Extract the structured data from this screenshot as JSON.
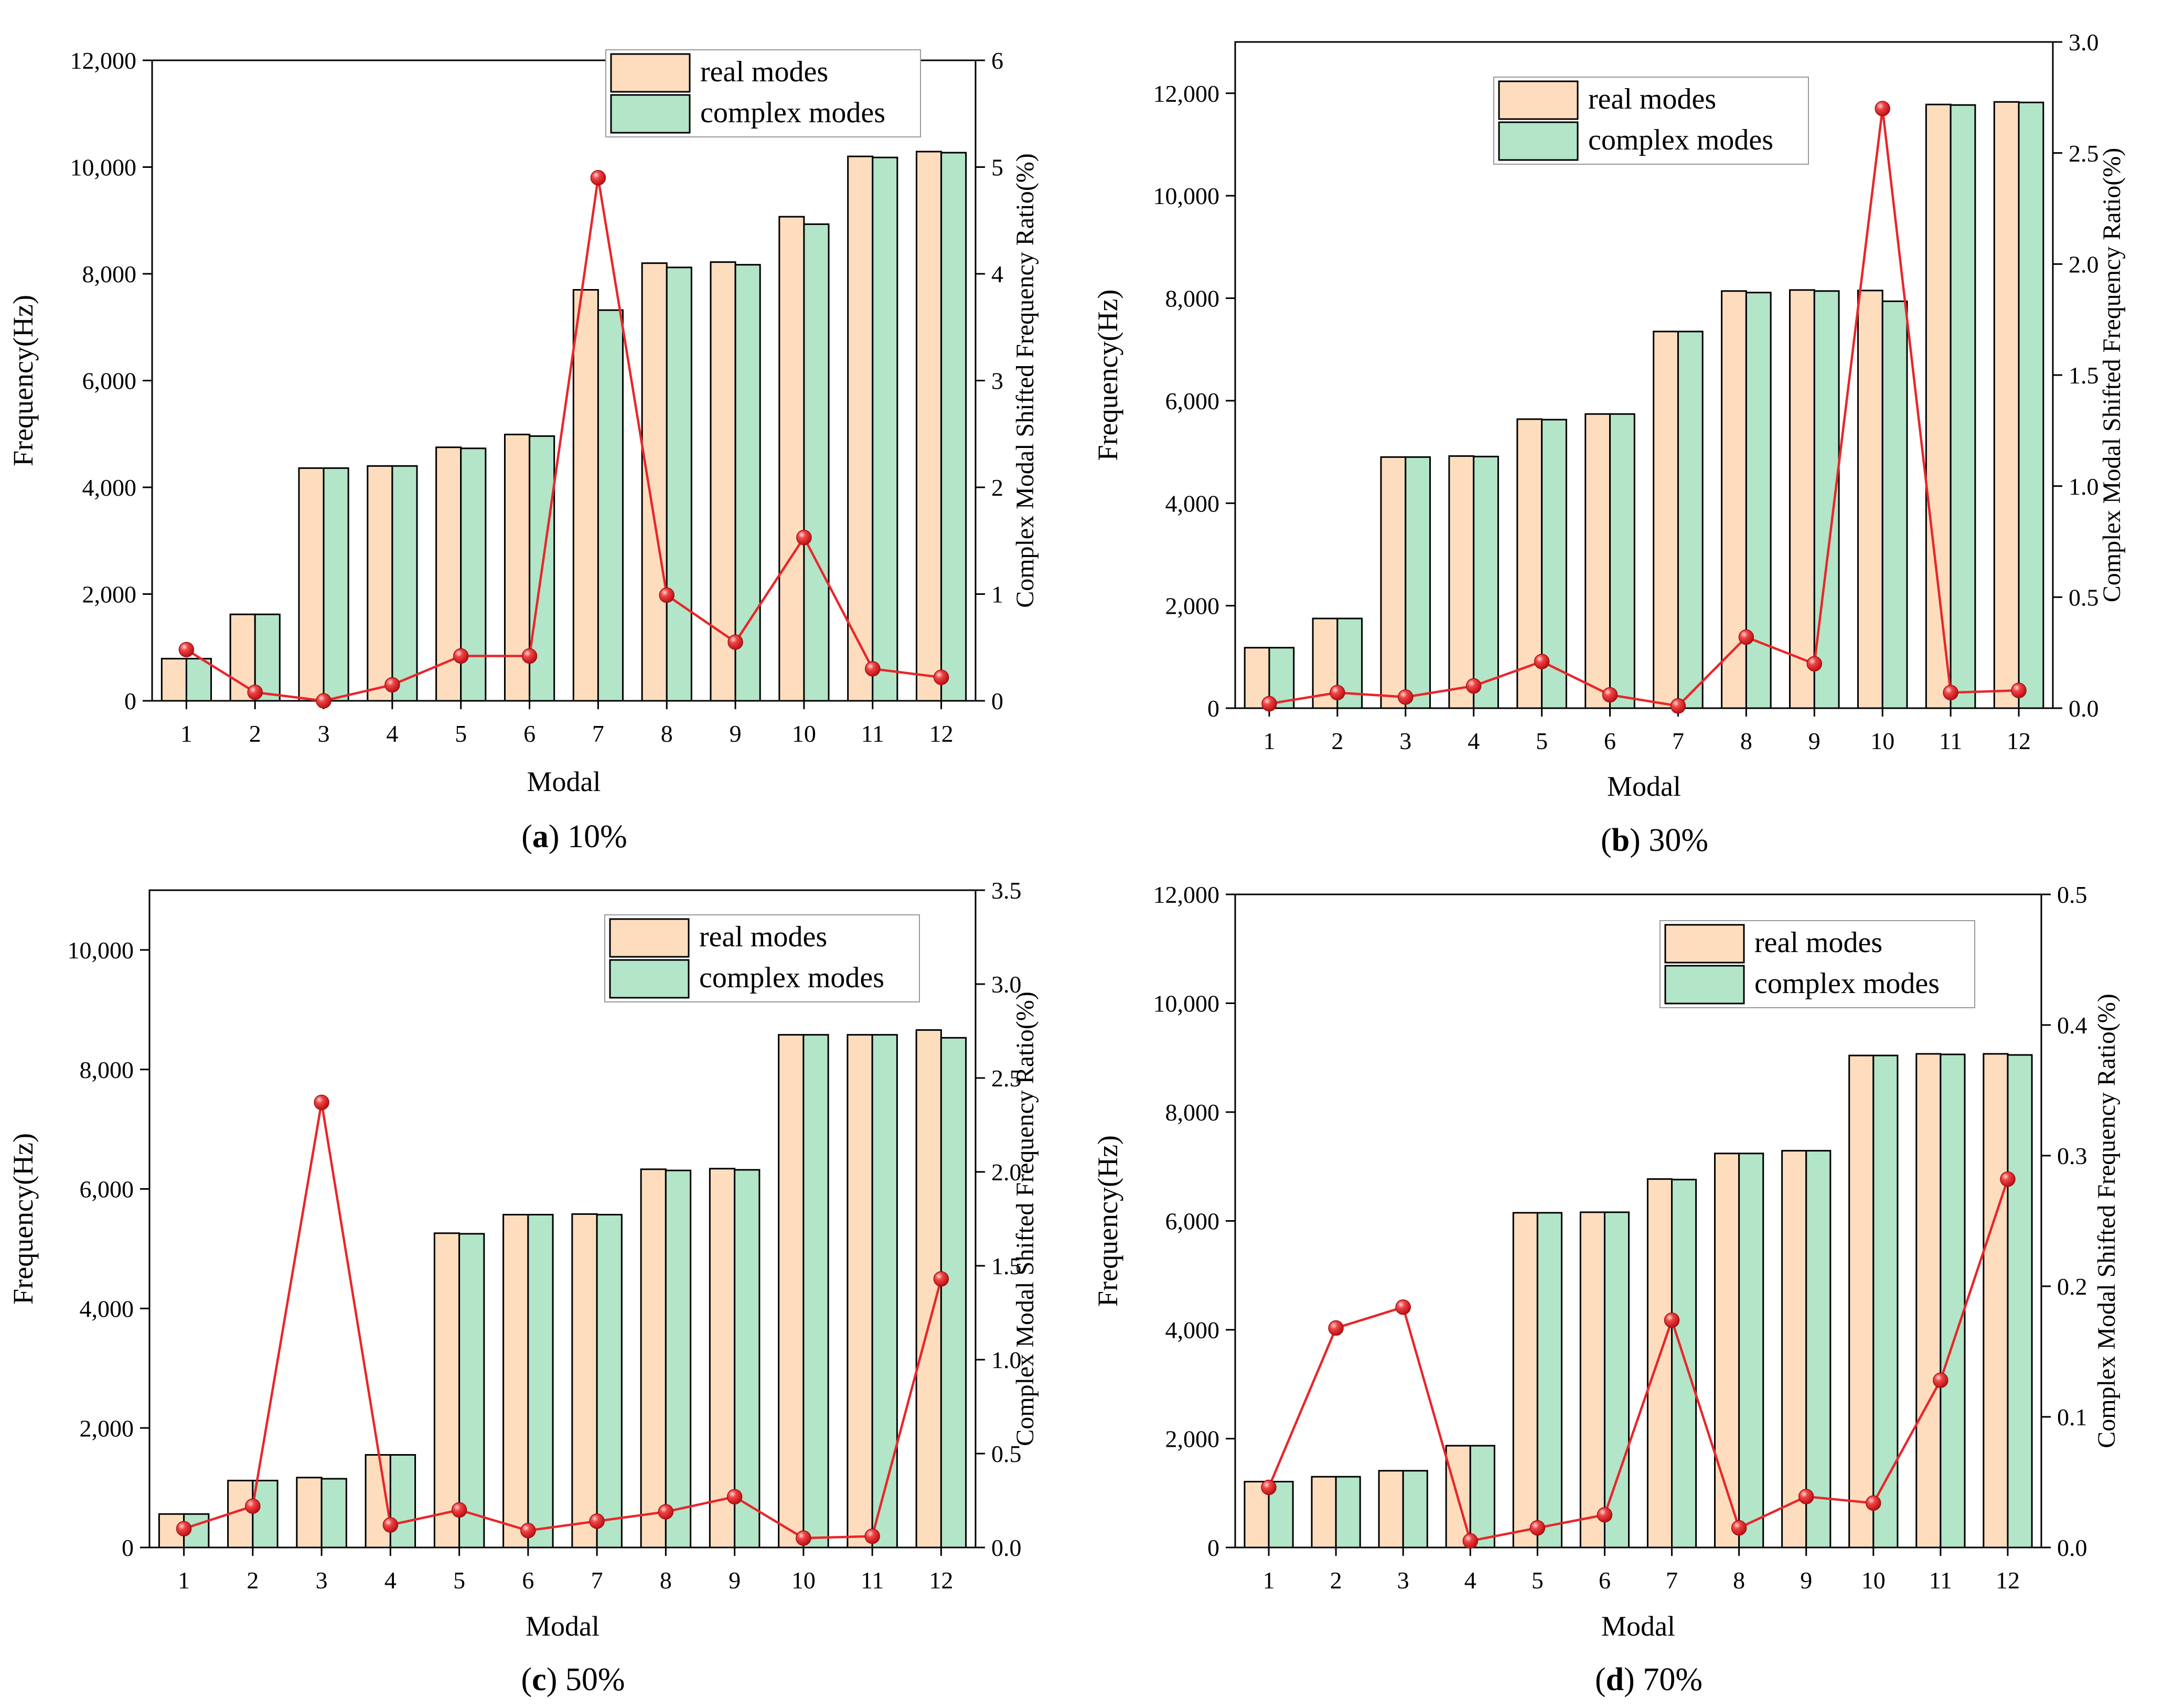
{
  "colors": {
    "real_bar": "#FDDDBE",
    "complex_bar": "#B3E5C8",
    "bar_stroke": "#000000",
    "line": "#E8262A",
    "marker": "#E8262A"
  },
  "chart_data": [
    {
      "id": "a",
      "type": "bar",
      "caption_letter": "a",
      "caption_text": " 10%",
      "xlabel": "Modal",
      "ylabel": "Frequency(Hz)",
      "y2label": "Complex Modal Shifted Frequency Ratio(%)",
      "legend_position": "top-right",
      "legend": [
        "real modes",
        "complex modes"
      ],
      "categories": [
        "1",
        "2",
        "3",
        "4",
        "5",
        "6",
        "7",
        "8",
        "9",
        "10",
        "11",
        "12"
      ],
      "ylim": [
        0,
        12000
      ],
      "yticks": [
        0,
        2000,
        4000,
        6000,
        8000,
        10000,
        12000
      ],
      "ytick_labels": [
        "0",
        "2,000",
        "4,000",
        "6,000",
        "8,000",
        "10,000",
        "12,000"
      ],
      "y2lim": [
        0,
        6
      ],
      "y2ticks": [
        0,
        1,
        2,
        3,
        4,
        5,
        6
      ],
      "y2tick_labels": [
        "0",
        "1",
        "2",
        "3",
        "4",
        "5",
        "6"
      ],
      "series": [
        {
          "name": "real modes",
          "values": [
            790,
            1620,
            4360,
            4400,
            4750,
            4990,
            7700,
            8200,
            8220,
            9070,
            10200,
            10290
          ]
        },
        {
          "name": "complex modes",
          "values": [
            790,
            1620,
            4360,
            4400,
            4730,
            4960,
            7320,
            8120,
            8170,
            8930,
            10180,
            10270
          ]
        }
      ],
      "ratio_series": {
        "name": "Complex Modal Shifted Frequency Ratio(%)",
        "values": [
          0.48,
          0.08,
          0.0,
          0.15,
          0.42,
          0.42,
          4.9,
          0.99,
          0.55,
          1.53,
          0.3,
          0.22
        ]
      }
    },
    {
      "id": "b",
      "type": "bar",
      "caption_letter": "b",
      "caption_text": " 30%",
      "xlabel": "Modal",
      "ylabel": "Frequency(Hz)",
      "y2label": "Complex Modal Shifted Frequency Ratio(%)",
      "legend_position": "top-right",
      "legend": [
        "real modes",
        "complex modes"
      ],
      "categories": [
        "1",
        "2",
        "3",
        "4",
        "5",
        "6",
        "7",
        "8",
        "9",
        "10",
        "11",
        "12"
      ],
      "ylim": [
        0,
        13000
      ],
      "yticks": [
        0,
        2000,
        4000,
        6000,
        8000,
        10000,
        12000
      ],
      "ytick_labels": [
        "0",
        "2,000",
        "4,000",
        "6,000",
        "8,000",
        "10,000",
        "12,000"
      ],
      "y2lim": [
        0,
        3
      ],
      "y2ticks": [
        0,
        0.5,
        1,
        1.5,
        2,
        2.5,
        3
      ],
      "y2tick_labels": [
        "0.0",
        "0.5",
        "1.0",
        "1.5",
        "2.0",
        "2.5",
        "3.0"
      ],
      "series": [
        {
          "name": "real modes",
          "values": [
            1180,
            1750,
            4900,
            4920,
            5640,
            5740,
            7350,
            8140,
            8160,
            8150,
            11780,
            11830
          ]
        },
        {
          "name": "complex modes",
          "values": [
            1180,
            1750,
            4900,
            4910,
            5630,
            5740,
            7350,
            8110,
            8140,
            7940,
            11770,
            11820
          ]
        }
      ],
      "ratio_series": {
        "name": "Complex Modal Shifted Frequency Ratio(%)",
        "values": [
          0.02,
          0.07,
          0.05,
          0.1,
          0.21,
          0.06,
          0.01,
          0.32,
          0.2,
          2.7,
          0.07,
          0.08
        ]
      }
    },
    {
      "id": "c",
      "type": "bar",
      "caption_letter": "c",
      "caption_text": " 50%",
      "xlabel": "Modal",
      "ylabel": "Frequency(Hz)",
      "y2label": "Complex Modal Shifted Frequency Ratio(%)",
      "legend_position": "top-right",
      "legend": [
        "real modes",
        "complex modes"
      ],
      "categories": [
        "1",
        "2",
        "3",
        "4",
        "5",
        "6",
        "7",
        "8",
        "9",
        "10",
        "11",
        "12"
      ],
      "ylim": [
        0,
        11000
      ],
      "yticks": [
        0,
        2000,
        4000,
        6000,
        8000,
        10000
      ],
      "ytick_labels": [
        "0",
        "2,000",
        "4,000",
        "6,000",
        "8,000",
        "10,000"
      ],
      "y2lim": [
        0,
        3.5
      ],
      "y2ticks": [
        0,
        0.5,
        1,
        1.5,
        2,
        2.5,
        3,
        3.5
      ],
      "y2tick_labels": [
        "0.0",
        "0.5",
        "1.0",
        "1.5",
        "2.0",
        "2.5",
        "3.0",
        "3.5"
      ],
      "series": [
        {
          "name": "real modes",
          "values": [
            560,
            1120,
            1170,
            1550,
            5260,
            5570,
            5580,
            6330,
            6340,
            8580,
            8580,
            8660
          ]
        },
        {
          "name": "complex modes",
          "values": [
            560,
            1120,
            1150,
            1550,
            5250,
            5570,
            5570,
            6310,
            6320,
            8580,
            8580,
            8530
          ]
        }
      ],
      "ratio_series": {
        "name": "Complex Modal Shifted Frequency Ratio(%)",
        "values": [
          0.1,
          0.22,
          2.37,
          0.12,
          0.2,
          0.09,
          0.14,
          0.19,
          0.27,
          0.05,
          0.06,
          1.43
        ]
      }
    },
    {
      "id": "d",
      "type": "bar",
      "caption_letter": "d",
      "caption_text": " 70%",
      "xlabel": "Modal",
      "ylabel": "Frequency(Hz)",
      "y2label": "Complex Modal Shifted Frequency Ratio(%)",
      "legend_position": "top-right",
      "legend": [
        "real modes",
        "complex modes"
      ],
      "categories": [
        "1",
        "2",
        "3",
        "4",
        "5",
        "6",
        "7",
        "8",
        "9",
        "10",
        "11",
        "12"
      ],
      "ylim": [
        0,
        12000
      ],
      "yticks": [
        0,
        2000,
        4000,
        6000,
        8000,
        10000,
        12000
      ],
      "ytick_labels": [
        "0",
        "2,000",
        "4,000",
        "6,000",
        "8,000",
        "10,000",
        "12,000"
      ],
      "y2lim": [
        0,
        0.5
      ],
      "y2ticks": [
        0,
        0.1,
        0.2,
        0.3,
        0.4,
        0.5
      ],
      "y2tick_labels": [
        "0.0",
        "0.1",
        "0.2",
        "0.3",
        "0.4",
        "0.5"
      ],
      "series": [
        {
          "name": "real modes",
          "values": [
            1210,
            1300,
            1410,
            1870,
            6150,
            6160,
            6770,
            7240,
            7290,
            9040,
            9070,
            9070
          ]
        },
        {
          "name": "complex modes",
          "values": [
            1210,
            1300,
            1410,
            1870,
            6150,
            6160,
            6760,
            7240,
            7290,
            9040,
            9060,
            9050
          ]
        }
      ],
      "ratio_series": {
        "name": "Complex Modal Shifted Frequency Ratio(%)",
        "values": [
          0.046,
          0.168,
          0.184,
          0.005,
          0.015,
          0.025,
          0.174,
          0.015,
          0.039,
          0.034,
          0.128,
          0.282
        ]
      }
    }
  ]
}
